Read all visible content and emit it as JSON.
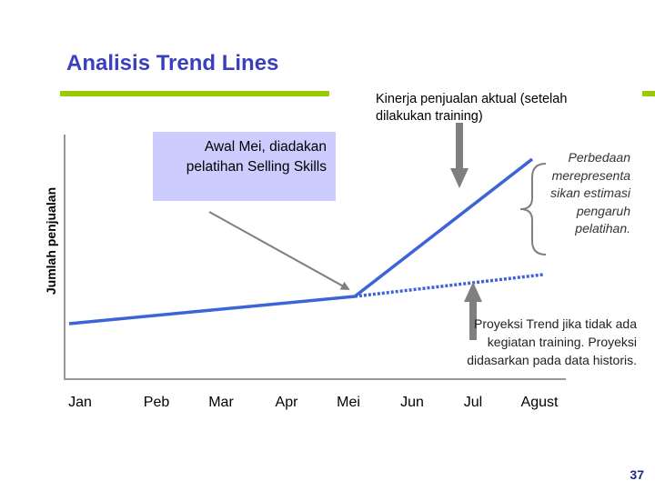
{
  "title": "Analisis Trend Lines",
  "y_axis_label": "Jumlah penjualan",
  "months": [
    "Jan",
    "Peb",
    "Mar",
    "Apr",
    "Mei",
    "Jun",
    "Jul",
    "Agust"
  ],
  "callout_training": [
    "Awal Mei, diadakan",
    "pelatihan Selling Skills"
  ],
  "note_actual": [
    "Kinerja penjualan aktual (setelah",
    "dilakukan training)"
  ],
  "note_difference": [
    "Perbedaan",
    "merepresenta",
    "sikan estimasi",
    "pengaruh",
    "pelatihan."
  ],
  "note_projection": [
    "Proyeksi Trend jika tidak ada",
    "kegiatan training. Proyeksi",
    "didasarkan pada data historis."
  ],
  "page_number": "37",
  "colors": {
    "title": "#3a3fc0",
    "accent_rule": "#99cc00",
    "callout_fill": "#ccccff",
    "trend_line": "#3c64d8",
    "arrow": "#7f7f7f"
  }
}
